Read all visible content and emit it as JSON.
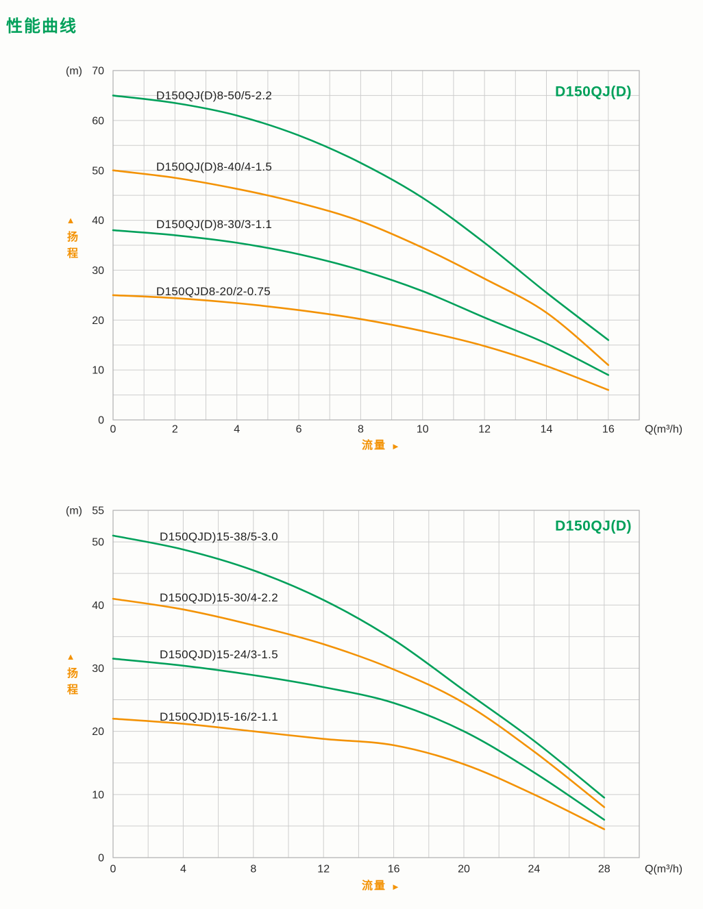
{
  "page": {
    "title": "性能曲线"
  },
  "colors": {
    "green": "#00a05a",
    "orange": "#f39204",
    "grid": "#cdcdcd",
    "border": "#b0b0b0",
    "tick_text": "#2a2a2a",
    "label_text": "#1f1f1f"
  },
  "charts": [
    {
      "model_label": "D150QJ(D)",
      "y_unit": "(m)",
      "x_unit": "Q(m³/h)",
      "y_axis_name": "扬程",
      "x_axis_name": "流量",
      "chart_data": {
        "type": "line",
        "title": "D150QJ(D)",
        "xlabel": "Q(m³/h) 流量",
        "ylabel": "扬程 (m)",
        "xlim": [
          0,
          17
        ],
        "ylim": [
          0,
          70
        ],
        "x_grid_step": 1,
        "y_grid_step": 5,
        "x_ticks": [
          0,
          2,
          4,
          6,
          8,
          10,
          12,
          14,
          16
        ],
        "y_ticks": [
          0,
          10,
          20,
          30,
          40,
          50,
          60,
          70
        ],
        "grid": true,
        "legend_position": "labels-on-curves",
        "x": [
          0,
          2,
          4,
          6,
          8,
          10,
          12,
          14,
          16
        ],
        "series": [
          {
            "name": "D150QJ(D)8-50/5-2.2",
            "color": "green",
            "values": [
              65,
              63.5,
              61,
              57,
              51.5,
              44.5,
              35.5,
              25.5,
              16
            ]
          },
          {
            "name": "D150QJ(D)8-40/4-1.5",
            "color": "orange",
            "values": [
              50,
              48.5,
              46.3,
              43.5,
              39.8,
              34.5,
              28.3,
              21.5,
              11
            ]
          },
          {
            "name": "D150QJ(D)8-30/3-1.1",
            "color": "green",
            "values": [
              38,
              37,
              35.5,
              33.2,
              30,
              25.8,
              20.5,
              15.3,
              9
            ]
          },
          {
            "name": "D150QJD8-20/2-0.75",
            "color": "orange",
            "values": [
              25,
              24.4,
              23.4,
              22,
              20.2,
              17.8,
              14.8,
              10.8,
              6
            ]
          }
        ]
      }
    },
    {
      "model_label": "D150QJ(D)",
      "y_unit": "(m)",
      "x_unit": "Q(m³/h)",
      "y_axis_name": "扬程",
      "x_axis_name": "流量",
      "chart_data": {
        "type": "line",
        "title": "D150QJ(D)",
        "xlabel": "Q(m³/h) 流量",
        "ylabel": "扬程 (m)",
        "xlim": [
          0,
          30
        ],
        "ylim": [
          0,
          55
        ],
        "x_grid_step": 2,
        "y_grid_step": 5,
        "x_ticks": [
          0,
          4,
          8,
          12,
          16,
          20,
          24,
          28
        ],
        "y_ticks": [
          0,
          10,
          20,
          30,
          40,
          50,
          55
        ],
        "grid": true,
        "legend_position": "labels-on-curves",
        "x": [
          0,
          4,
          8,
          12,
          16,
          20,
          24,
          28
        ],
        "series": [
          {
            "name": "D150QJD)15-38/5-3.0",
            "color": "green",
            "values": [
              51,
              48.8,
              45.5,
              40.8,
              34.5,
              26.5,
              18.5,
              9.5
            ]
          },
          {
            "name": "D150QJD)15-30/4-2.2",
            "color": "orange",
            "values": [
              41,
              39.3,
              36.8,
              33.8,
              29.8,
              24.5,
              16.8,
              8
            ]
          },
          {
            "name": "D150QJD)15-24/3-1.5",
            "color": "green",
            "values": [
              31.5,
              30.4,
              28.9,
              27,
              24.5,
              20,
              13.5,
              6
            ]
          },
          {
            "name": "D150QJD)15-16/2-1.1",
            "color": "orange",
            "values": [
              22,
              21.2,
              20,
              18.8,
              17.8,
              14.8,
              10,
              4.5
            ]
          }
        ]
      }
    }
  ]
}
